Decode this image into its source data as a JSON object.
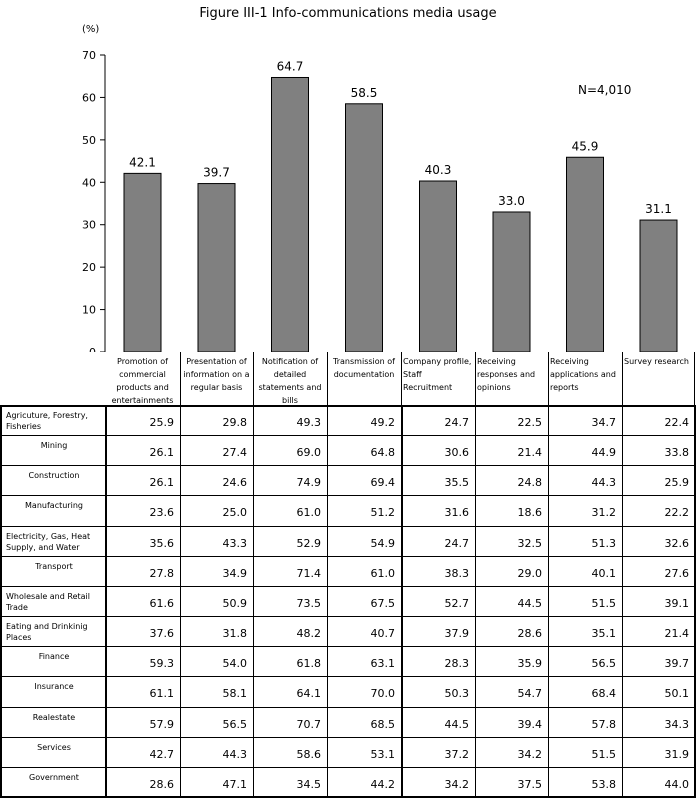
{
  "chart_data": {
    "type": "bar",
    "title": "Figure III-1 Info-communications media usage",
    "unit": "(%)",
    "annotation": "N=4,010",
    "ylim": [
      0,
      70
    ],
    "yticks": [
      "0",
      "10",
      "20",
      "30",
      "40",
      "50",
      "60",
      "70"
    ],
    "grid": false,
    "bar_color": "#808080",
    "categories": [
      "Promotion of commercial products and entertainments",
      "Presentation of information on a regular basis",
      "Notification of detailed statements and bills",
      "Transmission of documentation",
      "Company profile, Staff Recruitment",
      "Receiving responses and opinions",
      "Receiving applications and reports",
      "Survey research"
    ],
    "values": [
      42.1,
      39.7,
      64.7,
      58.5,
      40.3,
      33.0,
      45.9,
      31.1
    ],
    "value_labels": [
      "42.1",
      "39.7",
      "64.7",
      "58.5",
      "40.3",
      "33.0",
      "45.9",
      "31.1"
    ]
  },
  "table": {
    "rows": [
      {
        "label": "Agricuture, Forestry, Fisheries",
        "values": [
          "25.9",
          "29.8",
          "49.3",
          "49.2",
          "24.7",
          "22.5",
          "34.7",
          "22.4"
        ]
      },
      {
        "label": "Mining",
        "values": [
          "26.1",
          "27.4",
          "69.0",
          "64.8",
          "30.6",
          "21.4",
          "44.9",
          "33.8"
        ]
      },
      {
        "label": "Construction",
        "values": [
          "26.1",
          "24.6",
          "74.9",
          "69.4",
          "35.5",
          "24.8",
          "44.3",
          "25.9"
        ]
      },
      {
        "label": "Manufacturing",
        "values": [
          "23.6",
          "25.0",
          "61.0",
          "51.2",
          "31.6",
          "18.6",
          "31.2",
          "22.2"
        ]
      },
      {
        "label": "Electricity, Gas, Heat Supply, and Water",
        "values": [
          "35.6",
          "43.3",
          "52.9",
          "54.9",
          "24.7",
          "32.5",
          "51.3",
          "32.6"
        ]
      },
      {
        "label": "Transport",
        "values": [
          "27.8",
          "34.9",
          "71.4",
          "61.0",
          "38.3",
          "29.0",
          "40.1",
          "27.6"
        ]
      },
      {
        "label": "Wholesale and Retail Trade",
        "values": [
          "61.6",
          "50.9",
          "73.5",
          "67.5",
          "52.7",
          "44.5",
          "51.5",
          "39.1"
        ]
      },
      {
        "label": "Eating and Drinkinig Places",
        "values": [
          "37.6",
          "31.8",
          "48.2",
          "40.7",
          "37.9",
          "28.6",
          "35.1",
          "21.4"
        ]
      },
      {
        "label": "Finance",
        "values": [
          "59.3",
          "54.0",
          "61.8",
          "63.1",
          "28.3",
          "35.9",
          "56.5",
          "39.7"
        ]
      },
      {
        "label": "Insurance",
        "values": [
          "61.1",
          "58.1",
          "64.1",
          "70.0",
          "50.3",
          "54.7",
          "68.4",
          "50.1"
        ]
      },
      {
        "label": "Realestate",
        "values": [
          "57.9",
          "56.5",
          "70.7",
          "68.5",
          "44.5",
          "39.4",
          "57.8",
          "34.3"
        ]
      },
      {
        "label": "Services",
        "values": [
          "42.7",
          "44.3",
          "58.6",
          "53.1",
          "37.2",
          "34.2",
          "51.5",
          "31.9"
        ]
      },
      {
        "label": "Government",
        "values": [
          "28.6",
          "47.1",
          "34.5",
          "44.2",
          "34.2",
          "37.5",
          "53.8",
          "44.0"
        ]
      }
    ]
  }
}
